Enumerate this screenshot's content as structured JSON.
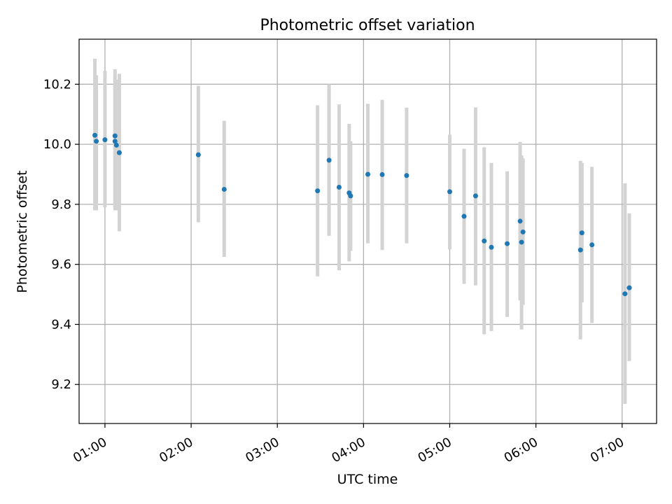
{
  "chart_data": {
    "type": "scatter",
    "title": "Photometric offset variation",
    "xlabel": "UTC time",
    "ylabel": "Photometric offset",
    "x_ticks": [
      "01:00",
      "02:00",
      "03:00",
      "04:00",
      "05:00",
      "06:00",
      "07:00"
    ],
    "y_ticks": [
      "9.2",
      "9.4",
      "9.6",
      "9.8",
      "10.0",
      "10.2"
    ],
    "xlim": [
      "00:42",
      "07:24"
    ],
    "ylim": [
      9.07,
      10.35
    ],
    "grid": true,
    "colors": {
      "marker": "#1f77b4",
      "errorbar": "#d3d3d3",
      "grid": "#b0b0b0"
    },
    "points": [
      {
        "x": "00:53",
        "y": 10.03,
        "yerr_low": 9.78,
        "yerr_high": 10.285
      },
      {
        "x": "00:54",
        "y": 10.01,
        "yerr_low": 9.78,
        "yerr_high": 10.23
      },
      {
        "x": "01:00",
        "y": 10.015,
        "yerr_low": 9.79,
        "yerr_high": 10.245
      },
      {
        "x": "01:07",
        "y": 10.028,
        "yerr_low": 9.78,
        "yerr_high": 10.25
      },
      {
        "x": "01:07",
        "y": 10.01,
        "yerr_low": 9.79,
        "yerr_high": 10.225
      },
      {
        "x": "01:08",
        "y": 9.997,
        "yerr_low": 9.78,
        "yerr_high": 10.215
      },
      {
        "x": "01:10",
        "y": 9.972,
        "yerr_low": 9.71,
        "yerr_high": 10.235
      },
      {
        "x": "02:05",
        "y": 9.965,
        "yerr_low": 9.74,
        "yerr_high": 10.195
      },
      {
        "x": "02:23",
        "y": 9.85,
        "yerr_low": 9.625,
        "yerr_high": 10.078
      },
      {
        "x": "03:28",
        "y": 9.845,
        "yerr_low": 9.56,
        "yerr_high": 10.13
      },
      {
        "x": "03:36",
        "y": 9.947,
        "yerr_low": 9.695,
        "yerr_high": 10.2
      },
      {
        "x": "03:43",
        "y": 9.857,
        "yerr_low": 9.58,
        "yerr_high": 10.133
      },
      {
        "x": "03:50",
        "y": 9.838,
        "yerr_low": 9.61,
        "yerr_high": 10.068
      },
      {
        "x": "03:51",
        "y": 9.828,
        "yerr_low": 9.645,
        "yerr_high": 10.01
      },
      {
        "x": "04:03",
        "y": 9.9,
        "yerr_low": 9.67,
        "yerr_high": 10.135
      },
      {
        "x": "04:13",
        "y": 9.899,
        "yerr_low": 9.648,
        "yerr_high": 10.148
      },
      {
        "x": "04:30",
        "y": 9.896,
        "yerr_low": 9.67,
        "yerr_high": 10.122
      },
      {
        "x": "05:00",
        "y": 9.842,
        "yerr_low": 9.65,
        "yerr_high": 10.032
      },
      {
        "x": "05:10",
        "y": 9.76,
        "yerr_low": 9.535,
        "yerr_high": 9.985
      },
      {
        "x": "05:18",
        "y": 9.828,
        "yerr_low": 9.53,
        "yerr_high": 10.123
      },
      {
        "x": "05:24",
        "y": 9.678,
        "yerr_low": 9.367,
        "yerr_high": 9.99
      },
      {
        "x": "05:29",
        "y": 9.657,
        "yerr_low": 9.378,
        "yerr_high": 9.938
      },
      {
        "x": "05:40",
        "y": 9.669,
        "yerr_low": 9.425,
        "yerr_high": 9.91
      },
      {
        "x": "05:49",
        "y": 9.744,
        "yerr_low": 9.48,
        "yerr_high": 10.008
      },
      {
        "x": "05:50",
        "y": 9.674,
        "yerr_low": 9.383,
        "yerr_high": 9.963
      },
      {
        "x": "05:51",
        "y": 9.708,
        "yerr_low": 9.465,
        "yerr_high": 9.953
      },
      {
        "x": "06:31",
        "y": 9.648,
        "yerr_low": 9.35,
        "yerr_high": 9.945
      },
      {
        "x": "06:32",
        "y": 9.705,
        "yerr_low": 9.473,
        "yerr_high": 9.938
      },
      {
        "x": "06:39",
        "y": 9.665,
        "yerr_low": 9.405,
        "yerr_high": 9.925
      },
      {
        "x": "07:02",
        "y": 9.502,
        "yerr_low": 9.135,
        "yerr_high": 9.87
      },
      {
        "x": "07:05",
        "y": 9.522,
        "yerr_low": 9.278,
        "yerr_high": 9.77
      }
    ]
  }
}
